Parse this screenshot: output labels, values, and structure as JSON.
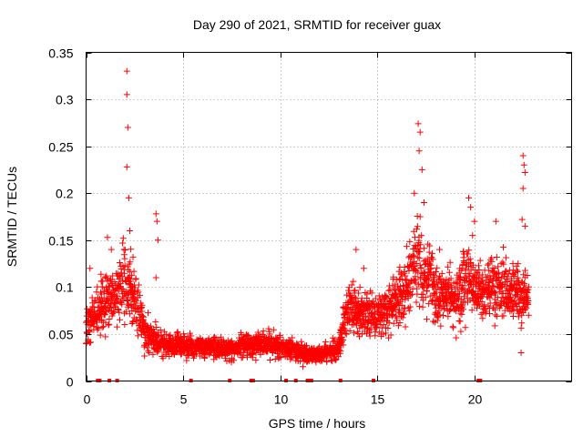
{
  "chart_data": {
    "type": "scatter",
    "title": "Day 290 of 2021, SRMTID for receiver guax",
    "xlabel": "GPS time / hours",
    "ylabel": "SRMTID / TECUs",
    "xlim": [
      0,
      25
    ],
    "ylim": [
      0,
      0.35
    ],
    "xticks": [
      0,
      5,
      10,
      15,
      20
    ],
    "xtick_labels": [
      "0",
      "5",
      "10",
      "15",
      "20"
    ],
    "yticks": [
      0,
      0.05,
      0.1,
      0.15,
      0.2,
      0.25,
      0.3,
      0.35
    ],
    "ytick_labels": [
      "0",
      "0.05",
      "0.1",
      "0.15",
      "0.2",
      "0.25",
      "0.3",
      "0.35"
    ],
    "grid": true,
    "marker": "plus",
    "series": [
      {
        "name": "SRMTID",
        "color": "#ff0000",
        "trend": [
          [
            0.0,
            0.06
          ],
          [
            0.5,
            0.07
          ],
          [
            1.0,
            0.085
          ],
          [
            1.5,
            0.09
          ],
          [
            2.0,
            0.11
          ],
          [
            2.5,
            0.09
          ],
          [
            3.0,
            0.05
          ],
          [
            3.5,
            0.045
          ],
          [
            4.0,
            0.04
          ],
          [
            5.0,
            0.038
          ],
          [
            6.0,
            0.035
          ],
          [
            7.0,
            0.035
          ],
          [
            8.0,
            0.035
          ],
          [
            9.0,
            0.04
          ],
          [
            10.0,
            0.038
          ],
          [
            11.0,
            0.03
          ],
          [
            12.0,
            0.028
          ],
          [
            13.0,
            0.035
          ],
          [
            13.5,
            0.08
          ],
          [
            14.5,
            0.07
          ],
          [
            15.5,
            0.075
          ],
          [
            16.5,
            0.1
          ],
          [
            17.0,
            0.13
          ],
          [
            17.5,
            0.115
          ],
          [
            18.0,
            0.095
          ],
          [
            18.5,
            0.09
          ],
          [
            19.0,
            0.085
          ],
          [
            19.5,
            0.11
          ],
          [
            20.0,
            0.1
          ],
          [
            20.5,
            0.09
          ],
          [
            21.0,
            0.1
          ],
          [
            22.0,
            0.095
          ],
          [
            22.8,
            0.09
          ]
        ],
        "spikes": [
          [
            2.1,
            0.33
          ],
          [
            2.1,
            0.305
          ],
          [
            2.15,
            0.27
          ],
          [
            2.1,
            0.228
          ],
          [
            2.2,
            0.195
          ],
          [
            2.25,
            0.16
          ],
          [
            3.6,
            0.178
          ],
          [
            3.65,
            0.17
          ],
          [
            3.7,
            0.15
          ],
          [
            3.6,
            0.11
          ],
          [
            17.1,
            0.274
          ],
          [
            17.2,
            0.265
          ],
          [
            17.15,
            0.245
          ],
          [
            17.3,
            0.225
          ],
          [
            16.9,
            0.2
          ],
          [
            17.4,
            0.19
          ],
          [
            17.2,
            0.175
          ],
          [
            19.7,
            0.195
          ],
          [
            19.8,
            0.185
          ],
          [
            20.0,
            0.17
          ],
          [
            19.9,
            0.155
          ],
          [
            22.5,
            0.24
          ],
          [
            22.55,
            0.23
          ],
          [
            22.6,
            0.222
          ],
          [
            22.5,
            0.205
          ],
          [
            22.45,
            0.172
          ],
          [
            22.6,
            0.165
          ],
          [
            22.4,
            0.03
          ],
          [
            21.1,
            0.17
          ],
          [
            0.2,
            0.12
          ],
          [
            1.1,
            0.153
          ],
          [
            1.3,
            0.14
          ],
          [
            13.9,
            0.14
          ],
          [
            14.3,
            0.12
          ],
          [
            18.2,
            0.14
          ],
          [
            15.2,
            0.05
          ]
        ],
        "flagged_zero_x": [
          0.6,
          0.7,
          1.2,
          1.6,
          5.4,
          7.4,
          8.5,
          8.6,
          10.3,
          10.8,
          11.4,
          11.5,
          11.6,
          13.1,
          14.8,
          20.2,
          20.3
        ]
      }
    ]
  }
}
